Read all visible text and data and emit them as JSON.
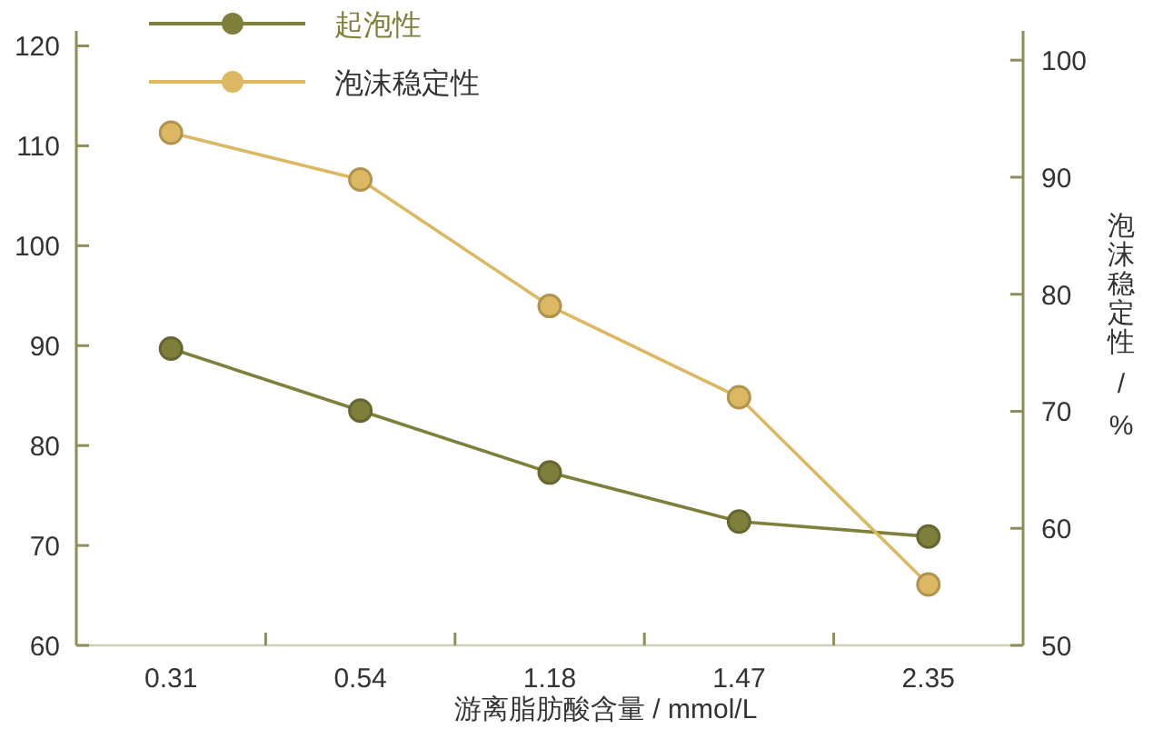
{
  "chart_data": {
    "type": "line",
    "categories": [
      "0.31",
      "0.54",
      "1.18",
      "1.47",
      "2.35"
    ],
    "xlabel": "游离脂肪酸含量 / mmol/L",
    "y2label": "泡沫稳定性 / %",
    "ylim": [
      60,
      121.5
    ],
    "yticks": [
      60,
      70,
      80,
      90,
      100,
      110,
      120
    ],
    "y2lim": [
      50,
      102.5
    ],
    "y2ticks": [
      50,
      60,
      70,
      80,
      90,
      100
    ],
    "series": [
      {
        "name": "起泡性",
        "color": "#7f7f3c",
        "values": [
          89.7,
          83.5,
          77.3,
          72.4,
          70.9
        ]
      },
      {
        "name": "泡沫稳定性",
        "color": "#dcb862",
        "axis": "y2",
        "values": [
          93.8,
          89.8,
          79,
          71.2,
          55.2
        ]
      }
    ],
    "marker": "circle",
    "legend": "top left",
    "grid": false
  }
}
